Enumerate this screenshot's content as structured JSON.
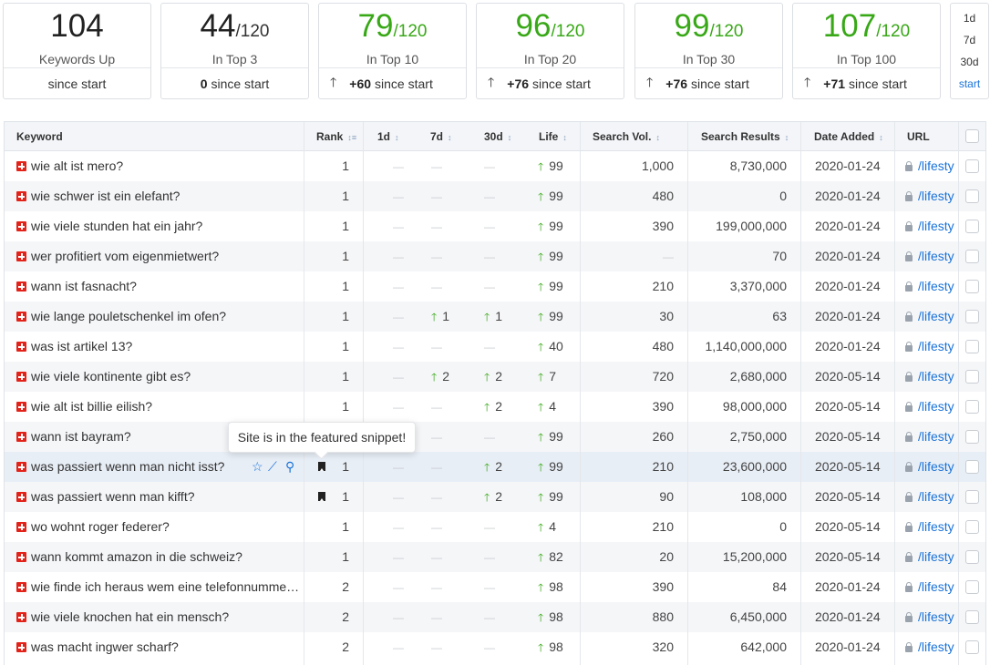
{
  "cards": [
    {
      "value": "104",
      "denom": "",
      "label": "Keywords Up",
      "delta": "",
      "footer": "since start",
      "green": false
    },
    {
      "value": "44",
      "denom": "/120",
      "label": "In Top 3",
      "delta": "0",
      "footer": "since start",
      "green": false
    },
    {
      "value": "79",
      "denom": "/120",
      "label": "In Top 10",
      "delta": "+60",
      "footer": "since start",
      "green": true
    },
    {
      "value": "96",
      "denom": "/120",
      "label": "In Top 20",
      "delta": "+76",
      "footer": "since start",
      "green": true
    },
    {
      "value": "99",
      "denom": "/120",
      "label": "In Top 30",
      "delta": "+76",
      "footer": "since start",
      "green": true
    },
    {
      "value": "107",
      "denom": "/120",
      "label": "In Top 100",
      "delta": "+71",
      "footer": "since start",
      "green": true
    }
  ],
  "periods": [
    "1d",
    "7d",
    "30d",
    "start"
  ],
  "active_period": "start",
  "columns": {
    "keyword": "Keyword",
    "rank": "Rank",
    "d1": "1d",
    "d7": "7d",
    "d30": "30d",
    "life": "Life",
    "search_vol": "Search Vol.",
    "search_results": "Search Results",
    "date_added": "Date Added",
    "url": "URL"
  },
  "tooltip": "Site is in the featured snippet!",
  "dash": "—",
  "url_text": "/lifesty",
  "rows": [
    {
      "kw": "wie alt ist mero?",
      "rank": "1",
      "d7": "",
      "d30": "",
      "life": "99",
      "vol": "1,000",
      "res": "8,730,000",
      "date": "2020-01-24"
    },
    {
      "kw": "wie schwer ist ein elefant?",
      "rank": "1",
      "d7": "",
      "d30": "",
      "life": "99",
      "vol": "480",
      "res": "0",
      "date": "2020-01-24"
    },
    {
      "kw": "wie viele stunden hat ein jahr?",
      "rank": "1",
      "d7": "",
      "d30": "",
      "life": "99",
      "vol": "390",
      "res": "199,000,000",
      "date": "2020-01-24"
    },
    {
      "kw": "wer profitiert vom eigenmietwert?",
      "rank": "1",
      "d7": "",
      "d30": "",
      "life": "99",
      "vol": "",
      "res": "70",
      "date": "2020-01-24"
    },
    {
      "kw": "wann ist fasnacht?",
      "rank": "1",
      "d7": "",
      "d30": "",
      "life": "99",
      "vol": "210",
      "res": "3,370,000",
      "date": "2020-01-24"
    },
    {
      "kw": "wie lange pouletschenkel im ofen?",
      "rank": "1",
      "d7": "1",
      "d30": "1",
      "life": "99",
      "vol": "30",
      "res": "63",
      "date": "2020-01-24"
    },
    {
      "kw": "was ist artikel 13?",
      "rank": "1",
      "d7": "",
      "d30": "",
      "life": "40",
      "vol": "480",
      "res": "1,140,000,000",
      "date": "2020-01-24"
    },
    {
      "kw": "wie viele kontinente gibt es?",
      "rank": "1",
      "d7": "2",
      "d30": "2",
      "life": "7",
      "vol": "720",
      "res": "2,680,000",
      "date": "2020-05-14"
    },
    {
      "kw": "wie alt ist billie eilish?",
      "rank": "1",
      "d7": "",
      "d30": "2",
      "life": "4",
      "vol": "390",
      "res": "98,000,000",
      "date": "2020-05-14"
    },
    {
      "kw": "wann ist bayram?",
      "rank": "",
      "d7": "",
      "d30": "",
      "life": "99",
      "vol": "260",
      "res": "2,750,000",
      "date": "2020-05-14"
    },
    {
      "kw": "was passiert wenn man nicht isst?",
      "rank": "1",
      "d7": "",
      "d30": "2",
      "life": "99",
      "vol": "210",
      "res": "23,600,000",
      "date": "2020-05-14",
      "snippet": true,
      "hover": true
    },
    {
      "kw": "was passiert wenn man kifft?",
      "rank": "1",
      "d7": "",
      "d30": "2",
      "life": "99",
      "vol": "90",
      "res": "108,000",
      "date": "2020-05-14",
      "snippet": true
    },
    {
      "kw": "wo wohnt roger federer?",
      "rank": "1",
      "d7": "",
      "d30": "",
      "life": "4",
      "vol": "210",
      "res": "0",
      "date": "2020-05-14"
    },
    {
      "kw": "wann kommt amazon in die schweiz?",
      "rank": "1",
      "d7": "",
      "d30": "",
      "life": "82",
      "vol": "20",
      "res": "15,200,000",
      "date": "2020-05-14"
    },
    {
      "kw": "wie finde ich heraus wem eine telefonnummer gehört?",
      "rank": "2",
      "d7": "",
      "d30": "",
      "life": "98",
      "vol": "390",
      "res": "84",
      "date": "2020-01-24"
    },
    {
      "kw": "wie viele knochen hat ein mensch?",
      "rank": "2",
      "d7": "",
      "d30": "",
      "life": "98",
      "vol": "880",
      "res": "6,450,000",
      "date": "2020-01-24"
    },
    {
      "kw": "was macht ingwer scharf?",
      "rank": "2",
      "d7": "",
      "d30": "",
      "life": "98",
      "vol": "320",
      "res": "642,000",
      "date": "2020-01-24"
    }
  ],
  "colors": {
    "green": "#38a817",
    "blue": "#1a73d9",
    "flag": "#e2231a"
  }
}
